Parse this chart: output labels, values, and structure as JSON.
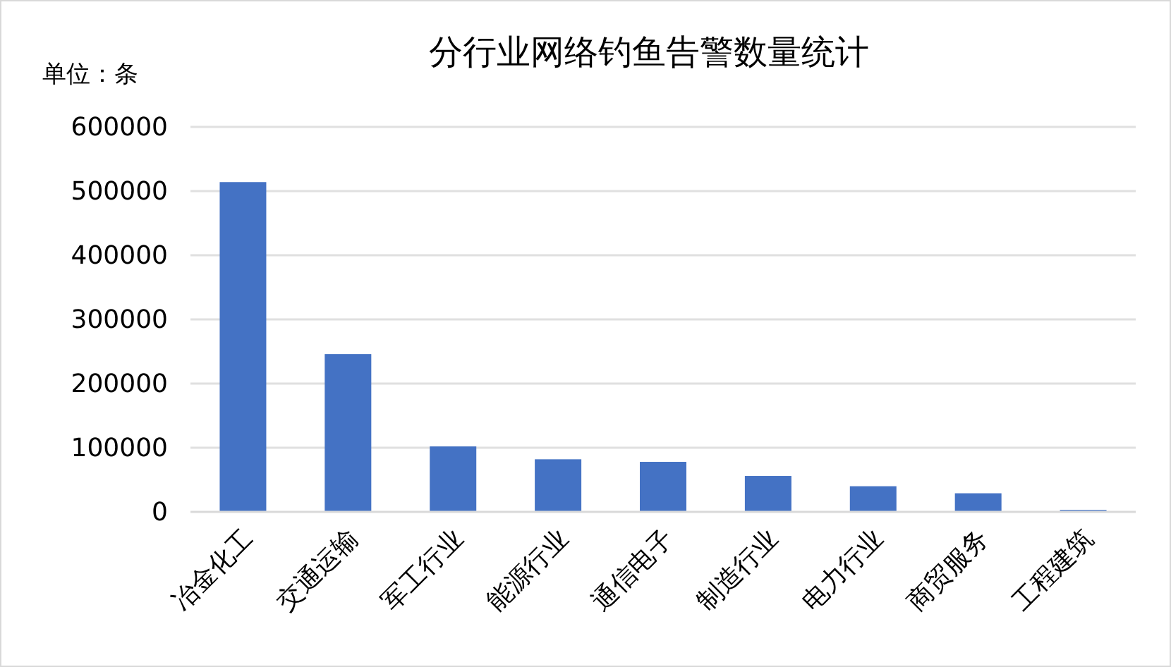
{
  "chart_data": {
    "type": "bar",
    "title": "分行业网络钓鱼告警数量统计",
    "ylabel": "单位：条",
    "categories": [
      "冶金化工",
      "交通运输",
      "军工行业",
      "能源行业",
      "通信电子",
      "制造行业",
      "电力行业",
      "商贸服务",
      "工程建筑"
    ],
    "values": [
      514000,
      246000,
      102000,
      82000,
      78000,
      56000,
      40000,
      29000,
      3000
    ],
    "color": "#4472c4",
    "ylim": [
      0,
      600000
    ],
    "yticks": [
      0,
      100000,
      200000,
      300000,
      400000,
      500000,
      600000
    ],
    "grid": "y"
  }
}
